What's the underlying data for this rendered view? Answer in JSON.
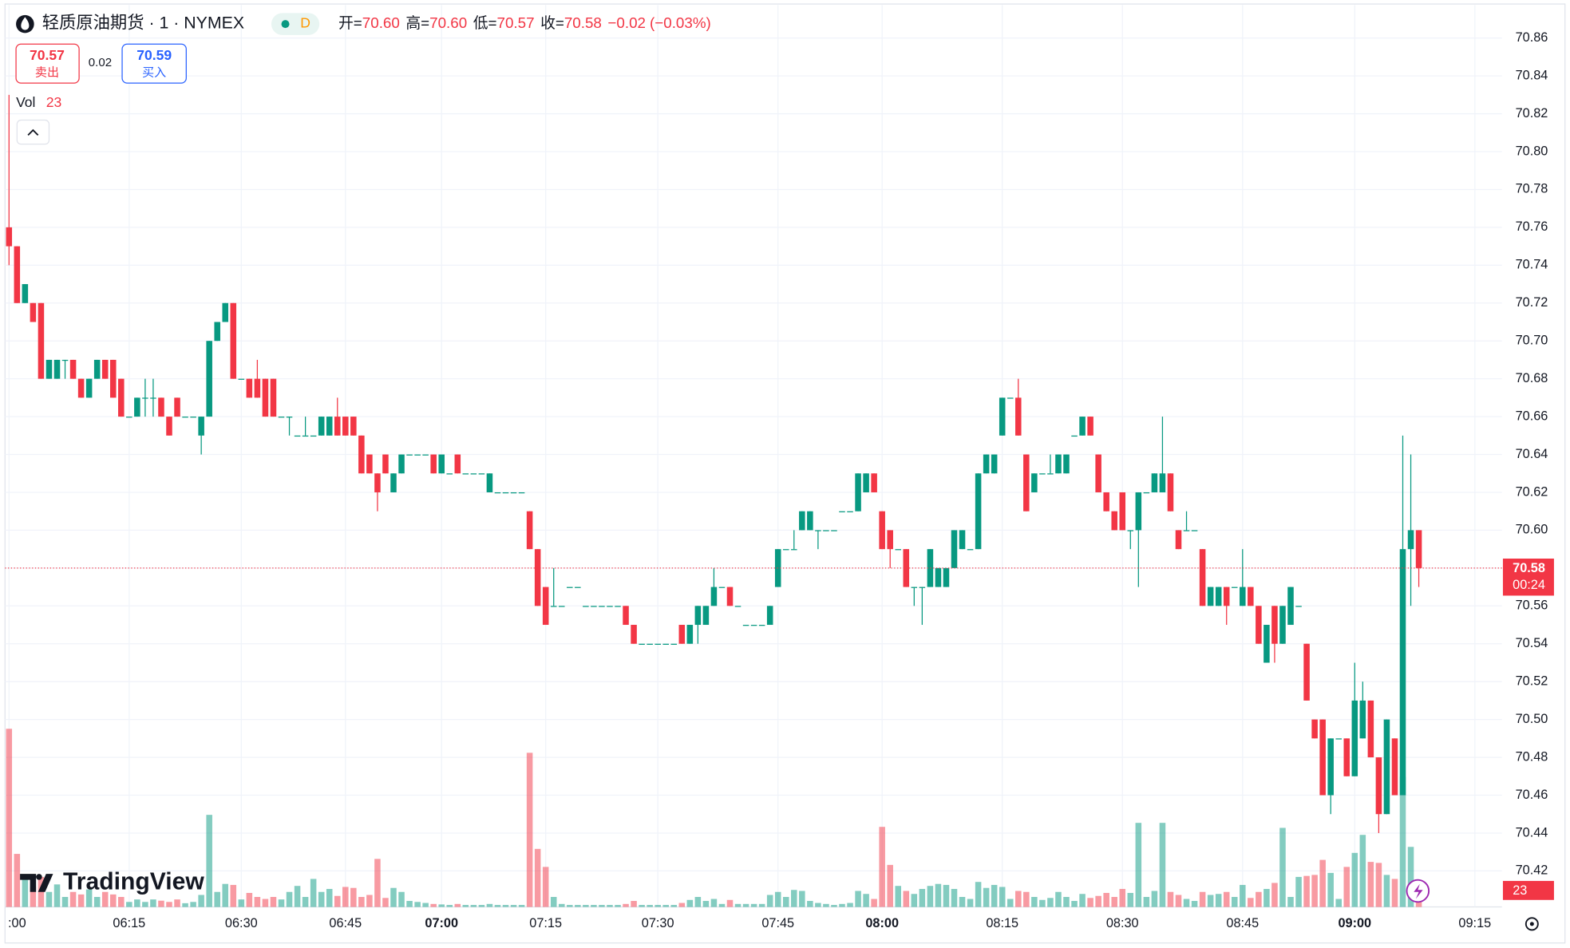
{
  "chart_data": {
    "type": "candlestick",
    "title": "轻质原油期货 · 1 · NYMEX",
    "interval_badge": "D",
    "ohlc_legend": [
      {
        "label": "开=",
        "value": "70.60"
      },
      {
        "label": "高=",
        "value": "70.60"
      },
      {
        "label": "低=",
        "value": "70.57"
      },
      {
        "label": "收=",
        "value": "70.58"
      }
    ],
    "change": "−0.02",
    "change_pct": "(−0.03%)",
    "bid": {
      "price": 70.57,
      "label": "卖出"
    },
    "spread": 0.02,
    "ask": {
      "price": 70.59,
      "label": "买入"
    },
    "volume_label": "Vol",
    "countdown": "00:24",
    "watermark": "TradingView",
    "up_color": "#089981",
    "down_color": "#f23645",
    "ylim": [
      70.42,
      70.86
    ],
    "yticks": [
      70.42,
      70.44,
      70.46,
      70.48,
      {
        "value": 70.5,
        "label": "70.50"
      },
      70.52,
      70.54,
      70.56,
      70.58,
      {
        "value": 70.6,
        "label": "70.60"
      },
      70.62,
      70.64,
      70.66,
      70.68,
      {
        "value": 70.7,
        "label": "70.70"
      },
      70.72,
      70.74,
      70.76,
      70.78,
      {
        "value": 70.8,
        "label": "70.80"
      },
      70.82,
      70.84,
      70.86
    ],
    "grid": true,
    "categories": [
      ":00",
      null,
      null,
      null,
      null,
      null,
      null,
      null,
      null,
      null,
      null,
      null,
      null,
      null,
      null,
      "06:15",
      null,
      null,
      null,
      null,
      null,
      null,
      null,
      null,
      null,
      null,
      null,
      null,
      null,
      "06:30",
      null,
      null,
      null,
      null,
      null,
      null,
      null,
      null,
      null,
      null,
      null,
      null,
      "06:45",
      null,
      null,
      null,
      null,
      null,
      null,
      null,
      null,
      null,
      null,
      null,
      "07:00",
      null,
      null,
      null,
      null,
      null,
      null,
      null,
      null,
      null,
      null,
      null,
      null,
      "07:15",
      null,
      null,
      null,
      null,
      null,
      null,
      null,
      null,
      null,
      null,
      null,
      null,
      null,
      "07:30",
      null,
      null,
      null,
      null,
      null,
      null,
      null,
      null,
      null,
      null,
      null,
      null,
      null,
      null,
      "07:45",
      null,
      null,
      null,
      null,
      null,
      null,
      null,
      null,
      null,
      null,
      null,
      null,
      "08:00",
      null,
      null,
      null,
      null,
      null,
      null,
      null,
      null,
      null,
      null,
      null,
      null,
      null,
      null,
      "08:15",
      null,
      null,
      null,
      null,
      null,
      null,
      null,
      null,
      null,
      null,
      null,
      null,
      null,
      null,
      "08:30",
      null,
      null,
      null,
      null,
      null,
      null,
      null,
      null,
      null,
      null,
      null,
      null,
      null,
      null,
      "08:45",
      null,
      null,
      null,
      null,
      null,
      null,
      null,
      null,
      null,
      null,
      null,
      null,
      null,
      "09:00",
      null,
      null,
      null,
      null,
      null,
      null,
      null,
      null,
      null,
      null,
      null,
      null,
      null,
      null,
      "09:15"
    ],
    "ohlcv": [
      [
        70.76,
        70.83,
        70.74,
        70.75,
        712
      ],
      [
        70.75,
        70.75,
        70.72,
        70.72,
        212
      ],
      [
        70.72,
        70.73,
        70.72,
        70.73,
        120
      ],
      [
        70.72,
        70.72,
        70.71,
        70.71,
        80
      ],
      [
        70.72,
        70.72,
        70.68,
        70.68,
        120
      ],
      [
        70.68,
        70.69,
        70.68,
        70.69,
        60
      ],
      [
        70.68,
        70.69,
        70.68,
        70.69,
        90
      ],
      [
        70.69,
        70.69,
        70.68,
        70.69,
        40
      ],
      [
        70.69,
        70.69,
        70.68,
        70.68,
        60
      ],
      [
        70.68,
        70.68,
        70.67,
        70.67,
        50
      ],
      [
        70.67,
        70.68,
        70.67,
        70.68,
        70
      ],
      [
        70.68,
        70.69,
        70.68,
        70.69,
        40
      ],
      [
        70.69,
        70.69,
        70.68,
        70.68,
        60
      ],
      [
        70.69,
        70.69,
        70.67,
        70.67,
        50
      ],
      [
        70.68,
        70.68,
        70.66,
        70.66,
        40
      ],
      [
        70.66,
        70.66,
        70.66,
        70.66,
        20
      ],
      [
        70.66,
        70.67,
        70.66,
        70.67,
        30
      ],
      [
        70.67,
        70.68,
        70.66,
        70.67,
        20
      ],
      [
        70.67,
        70.68,
        70.66,
        70.67,
        30
      ],
      [
        70.67,
        70.67,
        70.66,
        70.66,
        25
      ],
      [
        70.66,
        70.66,
        70.65,
        70.65,
        20
      ],
      [
        70.67,
        70.67,
        70.66,
        70.66,
        30
      ],
      [
        70.66,
        70.66,
        70.66,
        70.66,
        15
      ],
      [
        70.66,
        70.66,
        70.66,
        70.66,
        20
      ],
      [
        70.65,
        70.66,
        70.64,
        70.66,
        48
      ],
      [
        70.66,
        70.7,
        70.66,
        70.7,
        368
      ],
      [
        70.7,
        70.71,
        70.7,
        70.71,
        60
      ],
      [
        70.71,
        70.72,
        70.71,
        70.72,
        92
      ],
      [
        70.72,
        70.72,
        70.68,
        70.68,
        88
      ],
      [
        70.68,
        70.68,
        70.68,
        70.68,
        30
      ],
      [
        70.68,
        70.68,
        70.67,
        70.67,
        56
      ],
      [
        70.68,
        70.69,
        70.67,
        70.67,
        40
      ],
      [
        70.68,
        70.68,
        70.66,
        70.66,
        32
      ],
      [
        70.68,
        70.68,
        70.66,
        70.66,
        40
      ],
      [
        70.66,
        70.66,
        70.66,
        70.66,
        30
      ],
      [
        70.66,
        70.66,
        70.65,
        70.66,
        60
      ],
      [
        70.65,
        70.65,
        70.65,
        70.65,
        84
      ],
      [
        70.65,
        70.66,
        70.65,
        70.65,
        40
      ],
      [
        70.65,
        70.65,
        70.65,
        70.65,
        112
      ],
      [
        70.65,
        70.66,
        70.65,
        70.66,
        60
      ],
      [
        70.65,
        70.66,
        70.65,
        70.66,
        72
      ],
      [
        70.66,
        70.67,
        70.65,
        70.65,
        44
      ],
      [
        70.66,
        70.66,
        70.65,
        70.65,
        80
      ],
      [
        70.66,
        70.66,
        70.65,
        70.65,
        76
      ],
      [
        70.65,
        70.65,
        70.63,
        70.63,
        40
      ],
      [
        70.64,
        70.64,
        70.63,
        70.63,
        48
      ],
      [
        70.63,
        70.63,
        70.61,
        70.62,
        192
      ],
      [
        70.64,
        70.64,
        70.63,
        70.63,
        36
      ],
      [
        70.62,
        70.63,
        70.62,
        70.63,
        76
      ],
      [
        70.63,
        70.64,
        70.63,
        70.64,
        60
      ],
      [
        70.64,
        70.64,
        70.64,
        70.64,
        24
      ],
      [
        70.64,
        70.64,
        70.64,
        70.64,
        20
      ],
      [
        70.64,
        70.64,
        70.64,
        70.64,
        16
      ],
      [
        70.64,
        70.64,
        70.63,
        70.63,
        12
      ],
      [
        70.63,
        70.64,
        70.63,
        70.64,
        10
      ],
      [
        70.63,
        70.63,
        70.63,
        70.63,
        8
      ],
      [
        70.64,
        70.64,
        70.63,
        70.63,
        12
      ],
      [
        70.63,
        70.63,
        70.63,
        70.63,
        8
      ],
      [
        70.63,
        70.63,
        70.63,
        70.63,
        8
      ],
      [
        70.63,
        70.63,
        70.63,
        70.63,
        8
      ],
      [
        70.62,
        70.63,
        70.62,
        70.63,
        12
      ],
      [
        70.62,
        70.62,
        70.62,
        70.62,
        8
      ],
      [
        70.62,
        70.62,
        70.62,
        70.62,
        8
      ],
      [
        70.62,
        70.62,
        70.62,
        70.62,
        8
      ],
      [
        70.62,
        70.62,
        70.62,
        70.62,
        8
      ],
      [
        70.61,
        70.61,
        70.59,
        70.59,
        616
      ],
      [
        70.59,
        70.59,
        70.56,
        70.56,
        232
      ],
      [
        70.57,
        70.57,
        70.55,
        70.55,
        160
      ],
      [
        70.56,
        70.58,
        70.56,
        70.56,
        40
      ],
      [
        70.56,
        70.56,
        70.56,
        70.56,
        12
      ],
      [
        70.57,
        70.57,
        70.57,
        70.57,
        8
      ],
      [
        70.57,
        70.57,
        70.57,
        70.57,
        8
      ],
      [
        70.56,
        70.56,
        70.56,
        70.56,
        8
      ],
      [
        70.56,
        70.56,
        70.56,
        70.56,
        8
      ],
      [
        70.56,
        70.56,
        70.56,
        70.56,
        8
      ],
      [
        70.56,
        70.56,
        70.56,
        70.56,
        8
      ],
      [
        70.56,
        70.56,
        70.56,
        70.56,
        8
      ],
      [
        70.56,
        70.56,
        70.55,
        70.55,
        12
      ],
      [
        70.55,
        70.55,
        70.54,
        70.54,
        24
      ],
      [
        70.54,
        70.54,
        70.54,
        70.54,
        8
      ],
      [
        70.54,
        70.54,
        70.54,
        70.54,
        8
      ],
      [
        70.54,
        70.54,
        70.54,
        70.54,
        8
      ],
      [
        70.54,
        70.54,
        70.54,
        70.54,
        8
      ],
      [
        70.54,
        70.54,
        70.54,
        70.54,
        8
      ],
      [
        70.55,
        70.55,
        70.54,
        70.54,
        16
      ],
      [
        70.54,
        70.55,
        70.54,
        70.55,
        28
      ],
      [
        70.55,
        70.56,
        70.54,
        70.56,
        40
      ],
      [
        70.55,
        70.56,
        70.55,
        70.56,
        24
      ],
      [
        70.56,
        70.58,
        70.56,
        70.57,
        32
      ],
      [
        70.57,
        70.57,
        70.57,
        70.57,
        12
      ],
      [
        70.57,
        70.57,
        70.56,
        70.56,
        28
      ],
      [
        70.56,
        70.56,
        70.56,
        70.56,
        12
      ],
      [
        70.55,
        70.55,
        70.55,
        70.55,
        12
      ],
      [
        70.55,
        70.55,
        70.55,
        70.55,
        12
      ],
      [
        70.55,
        70.55,
        70.55,
        70.55,
        12
      ],
      [
        70.55,
        70.56,
        70.55,
        70.56,
        48
      ],
      [
        70.57,
        70.59,
        70.57,
        70.59,
        60
      ],
      [
        70.59,
        70.59,
        70.59,
        70.59,
        40
      ],
      [
        70.59,
        70.6,
        70.59,
        70.59,
        68
      ],
      [
        70.6,
        70.61,
        70.6,
        70.61,
        64
      ],
      [
        70.6,
        70.61,
        70.6,
        70.61,
        24
      ],
      [
        70.6,
        70.6,
        70.59,
        70.6,
        16
      ],
      [
        70.6,
        70.6,
        70.6,
        70.6,
        12
      ],
      [
        70.6,
        70.6,
        70.6,
        70.6,
        8
      ],
      [
        70.61,
        70.61,
        70.61,
        70.61,
        12
      ],
      [
        70.61,
        70.61,
        70.61,
        70.61,
        16
      ],
      [
        70.61,
        70.63,
        70.61,
        70.63,
        64
      ],
      [
        70.62,
        70.63,
        70.62,
        70.63,
        52
      ],
      [
        70.63,
        70.63,
        70.62,
        70.62,
        32
      ],
      [
        70.61,
        70.61,
        70.59,
        70.59,
        320
      ],
      [
        70.6,
        70.6,
        70.58,
        70.59,
        168
      ],
      [
        70.59,
        70.59,
        70.59,
        70.59,
        84
      ],
      [
        70.59,
        70.59,
        70.57,
        70.57,
        64
      ],
      [
        70.57,
        70.57,
        70.56,
        70.57,
        52
      ],
      [
        70.57,
        70.57,
        70.55,
        70.57,
        72
      ],
      [
        70.57,
        70.59,
        70.57,
        70.59,
        84
      ],
      [
        70.57,
        70.58,
        70.57,
        70.58,
        92
      ],
      [
        70.57,
        70.58,
        70.57,
        70.58,
        88
      ],
      [
        70.58,
        70.6,
        70.58,
        70.6,
        72
      ],
      [
        70.59,
        70.6,
        70.59,
        70.6,
        40
      ],
      [
        70.59,
        70.59,
        70.59,
        70.59,
        32
      ],
      [
        70.59,
        70.63,
        70.59,
        70.63,
        100
      ],
      [
        70.63,
        70.64,
        70.63,
        70.64,
        76
      ],
      [
        70.63,
        70.64,
        70.63,
        70.64,
        88
      ],
      [
        70.65,
        70.67,
        70.65,
        70.67,
        80
      ],
      [
        70.67,
        70.67,
        70.67,
        70.67,
        32
      ],
      [
        70.67,
        70.68,
        70.65,
        70.65,
        64
      ],
      [
        70.64,
        70.64,
        70.61,
        70.61,
        60
      ],
      [
        70.62,
        70.63,
        70.62,
        70.63,
        40
      ],
      [
        70.63,
        70.63,
        70.63,
        70.63,
        28
      ],
      [
        70.63,
        70.64,
        70.63,
        70.63,
        36
      ],
      [
        70.63,
        70.64,
        70.63,
        70.64,
        60
      ],
      [
        70.63,
        70.64,
        70.63,
        70.64,
        40
      ],
      [
        70.65,
        70.65,
        70.65,
        70.65,
        24
      ],
      [
        70.65,
        70.66,
        70.65,
        70.66,
        52
      ],
      [
        70.66,
        70.66,
        70.65,
        70.65,
        36
      ],
      [
        70.64,
        70.64,
        70.62,
        70.62,
        44
      ],
      [
        70.62,
        70.62,
        70.61,
        70.61,
        56
      ],
      [
        70.61,
        70.61,
        70.6,
        70.6,
        40
      ],
      [
        70.62,
        70.62,
        70.6,
        70.6,
        72
      ],
      [
        70.6,
        70.6,
        70.59,
        70.6,
        56
      ],
      [
        70.6,
        70.62,
        70.57,
        70.62,
        336
      ],
      [
        70.62,
        70.62,
        70.62,
        70.62,
        40
      ],
      [
        70.62,
        70.63,
        70.62,
        70.63,
        64
      ],
      [
        70.62,
        70.66,
        70.62,
        70.63,
        336
      ],
      [
        70.63,
        70.63,
        70.61,
        70.61,
        60
      ],
      [
        70.6,
        70.6,
        70.59,
        70.59,
        48
      ],
      [
        70.6,
        70.61,
        70.6,
        70.6,
        32
      ],
      [
        70.6,
        70.6,
        70.6,
        70.6,
        24
      ],
      [
        70.59,
        70.59,
        70.56,
        70.56,
        60
      ],
      [
        70.56,
        70.57,
        70.56,
        70.57,
        48
      ],
      [
        70.56,
        70.57,
        70.56,
        70.57,
        52
      ],
      [
        70.57,
        70.57,
        70.55,
        70.56,
        60
      ],
      [
        70.57,
        70.57,
        70.57,
        70.57,
        40
      ],
      [
        70.56,
        70.59,
        70.56,
        70.57,
        88
      ],
      [
        70.57,
        70.57,
        70.56,
        70.56,
        36
      ],
      [
        70.56,
        70.56,
        70.54,
        70.54,
        60
      ],
      [
        70.53,
        70.55,
        70.53,
        70.55,
        72
      ],
      [
        70.56,
        70.56,
        70.53,
        70.54,
        96
      ],
      [
        70.54,
        70.56,
        70.54,
        70.56,
        316
      ],
      [
        70.55,
        70.57,
        70.55,
        70.57,
        40
      ],
      [
        70.56,
        70.56,
        70.56,
        70.56,
        120
      ],
      [
        70.54,
        70.54,
        70.51,
        70.51,
        124
      ],
      [
        70.5,
        70.5,
        70.49,
        70.49,
        128
      ],
      [
        70.5,
        70.5,
        70.46,
        70.46,
        188
      ],
      [
        70.46,
        70.49,
        70.45,
        70.49,
        136
      ],
      [
        70.49,
        70.49,
        70.49,
        70.49,
        32
      ],
      [
        70.49,
        70.49,
        70.47,
        70.47,
        160
      ],
      [
        70.47,
        70.53,
        70.47,
        70.51,
        216
      ],
      [
        70.49,
        70.52,
        70.49,
        70.51,
        288
      ],
      [
        70.51,
        70.51,
        70.48,
        70.48,
        180
      ],
      [
        70.48,
        70.48,
        70.44,
        70.45,
        176
      ],
      [
        70.45,
        70.5,
        70.45,
        70.5,
        128
      ],
      [
        70.49,
        70.49,
        70.46,
        70.46,
        112
      ],
      [
        70.46,
        70.65,
        70.46,
        70.59,
        520
      ],
      [
        70.59,
        70.64,
        70.56,
        70.6,
        240
      ],
      [
        70.6,
        70.6,
        70.57,
        70.58,
        23
      ]
    ]
  }
}
